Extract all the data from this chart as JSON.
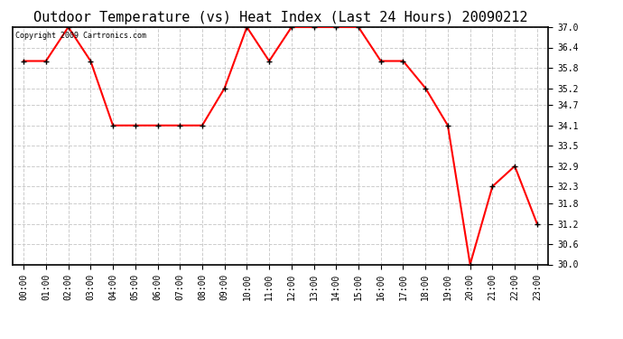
{
  "title": "Outdoor Temperature (vs) Heat Index (Last 24 Hours) 20090212",
  "copyright": "Copyright 2009 Cartronics.com",
  "x_labels": [
    "00:00",
    "01:00",
    "02:00",
    "03:00",
    "04:00",
    "05:00",
    "06:00",
    "07:00",
    "08:00",
    "09:00",
    "10:00",
    "11:00",
    "12:00",
    "13:00",
    "14:00",
    "15:00",
    "16:00",
    "17:00",
    "18:00",
    "19:00",
    "20:00",
    "21:00",
    "22:00",
    "23:00"
  ],
  "y_values": [
    36.0,
    36.0,
    37.0,
    36.0,
    34.1,
    34.1,
    34.1,
    34.1,
    34.1,
    35.2,
    37.0,
    36.0,
    37.0,
    37.0,
    37.0,
    37.0,
    36.0,
    36.0,
    35.2,
    34.1,
    30.0,
    32.3,
    32.9,
    31.2
  ],
  "line_color": "red",
  "marker": "+",
  "marker_color": "black",
  "marker_size": 5,
  "line_width": 1.5,
  "ylim_min": 30.0,
  "ylim_max": 37.0,
  "yticks": [
    30.0,
    30.6,
    31.2,
    31.8,
    32.3,
    32.9,
    33.5,
    34.1,
    34.7,
    35.2,
    35.8,
    36.4,
    37.0
  ],
  "grid_color": "#cccccc",
  "grid_linestyle": "--",
  "background_color": "white",
  "title_fontsize": 11,
  "tick_fontsize": 7,
  "copyright_fontsize": 6
}
